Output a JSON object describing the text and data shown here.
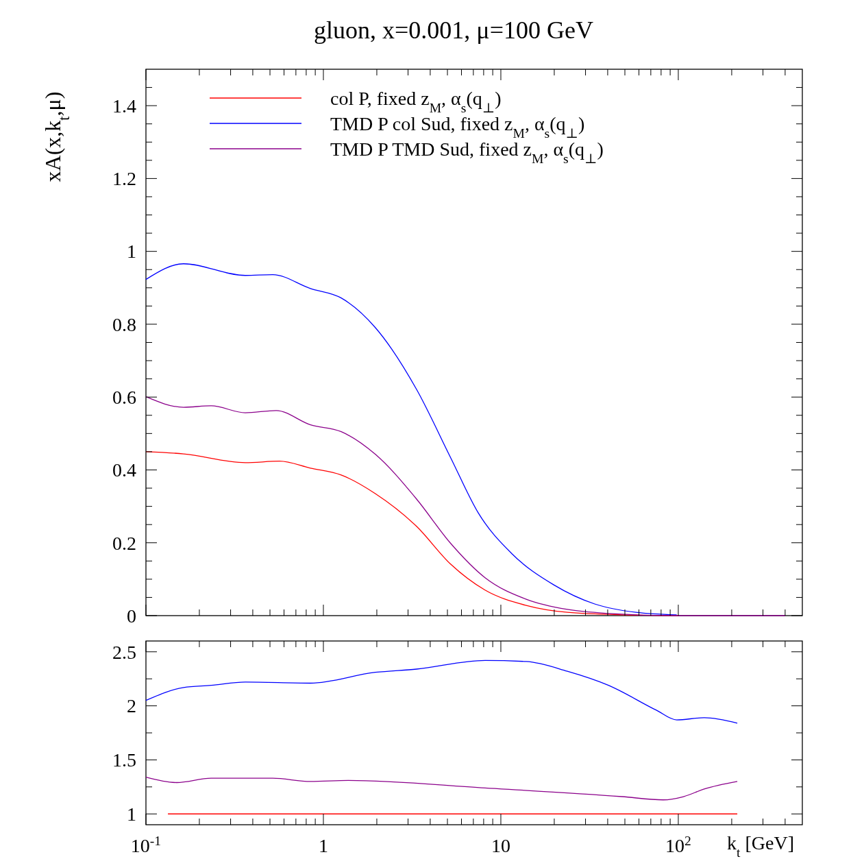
{
  "chart_data": [
    {
      "type": "line",
      "title": "gluon, x=0.001, μ=100 GeV",
      "ylabel": "xA(x,k$_{t}$,μ)",
      "log": "x",
      "xlim": [
        0.1,
        500
      ],
      "ylim": [
        0,
        1.5
      ],
      "tick_labels": "y",
      "legend": "top left",
      "grid": false,
      "xticks": [
        {
          "value": 0.1,
          "label": null
        },
        {
          "value": 0.2,
          "label": null
        },
        {
          "value": 0.3,
          "label": null
        },
        {
          "value": 0.4,
          "label": null
        },
        {
          "value": 0.5,
          "label": null
        },
        {
          "value": 0.6,
          "label": null
        },
        {
          "value": 0.7,
          "label": null
        },
        {
          "value": 0.8,
          "label": null
        },
        {
          "value": 0.9,
          "label": null
        },
        {
          "value": 1,
          "label": null
        },
        {
          "value": 2,
          "label": null
        },
        {
          "value": 3,
          "label": null
        },
        {
          "value": 4,
          "label": null
        },
        {
          "value": 5,
          "label": null
        },
        {
          "value": 6,
          "label": null
        },
        {
          "value": 7,
          "label": null
        },
        {
          "value": 8,
          "label": null
        },
        {
          "value": 9,
          "label": null
        },
        {
          "value": 10,
          "label": null
        },
        {
          "value": 20,
          "label": null
        },
        {
          "value": 30,
          "label": null
        },
        {
          "value": 40,
          "label": null
        },
        {
          "value": 50,
          "label": null
        },
        {
          "value": 60,
          "label": null
        },
        {
          "value": 70,
          "label": null
        },
        {
          "value": 80,
          "label": null
        },
        {
          "value": 90,
          "label": null
        },
        {
          "value": 100,
          "label": null
        },
        {
          "value": 200,
          "label": null
        },
        {
          "value": 300,
          "label": null
        },
        {
          "value": 400,
          "label": null
        }
      ],
      "yticks": [
        0,
        {
          "value": 0.05,
          "label": null
        },
        0.2,
        {
          "value": 0.1,
          "label": null
        },
        {
          "value": 0.15,
          "label": null
        },
        {
          "value": 0.25,
          "label": null
        },
        {
          "value": 0.3,
          "label": null
        },
        {
          "value": 0.35,
          "label": null
        },
        0.4,
        {
          "value": 0.45,
          "label": null
        },
        {
          "value": 0.5,
          "label": null
        },
        {
          "value": 0.55,
          "label": null
        },
        0.6,
        {
          "value": 0.65,
          "label": null
        },
        {
          "value": 0.7,
          "label": null
        },
        {
          "value": 0.75,
          "label": null
        },
        0.8,
        {
          "value": 0.85,
          "label": null
        },
        {
          "value": 0.9,
          "label": null
        },
        {
          "value": 0.95,
          "label": null
        },
        1,
        {
          "value": 1.05,
          "label": null
        },
        {
          "value": 1.1,
          "label": null
        },
        {
          "value": 1.15,
          "label": null
        },
        1.2,
        {
          "value": 1.25,
          "label": null
        },
        {
          "value": 1.3,
          "label": null
        },
        {
          "value": 1.35,
          "label": null
        },
        1.4,
        {
          "value": 1.45,
          "label": null
        }
      ],
      "series": [
        {
          "name": "col P, fixed z$_{M}$, α$_{s}$(q$_{⊥}$)",
          "color": "#ff0000",
          "x": [
            0.1,
            0.163,
            0.363,
            0.566,
            0.845,
            1.26,
            1.96,
            3.35,
            5.22,
            8.15,
            13.9,
            23.7,
            50,
            100
          ],
          "values": [
            0.45,
            0.444,
            0.42,
            0.424,
            0.405,
            0.386,
            0.335,
            0.245,
            0.141,
            0.07,
            0.028,
            0.009,
            0.002,
            0
          ]
        },
        {
          "name": "TMD P col Sud, fixed z$_{M}$, α$_{s}$(q$_{⊥}$)",
          "color": "#0000ff",
          "x": [
            0.1,
            0.163,
            0.363,
            0.518,
            0.845,
            1.26,
            1.96,
            3.35,
            5.22,
            7.46,
            11.6,
            19.8,
            33.8,
            57.7,
            98
          ],
          "values": [
            0.923,
            0.966,
            0.934,
            0.936,
            0.898,
            0.872,
            0.791,
            0.621,
            0.433,
            0.282,
            0.169,
            0.085,
            0.032,
            0.009,
            0.002
          ]
        },
        {
          "name": "TMD P TMD Sud, fixed z$_{M}$, α$_{s}$(q$_{⊥}$)",
          "color": "#8b008b",
          "x": [
            0.1,
            0.163,
            0.233,
            0.363,
            0.542,
            0.845,
            1.26,
            1.96,
            3.35,
            5.22,
            8.15,
            13.9,
            23.7,
            40.4,
            98,
            400
          ],
          "values": [
            0.601,
            0.572,
            0.576,
            0.557,
            0.563,
            0.524,
            0.505,
            0.443,
            0.32,
            0.198,
            0.104,
            0.045,
            0.017,
            0.006,
            0,
            0
          ]
        }
      ]
    },
    {
      "type": "line",
      "xlabel": "k$_{t}$ [GeV]",
      "log": "x",
      "xlim": [
        0.1,
        500
      ],
      "ylim": [
        0.9,
        2.6
      ],
      "legend": false,
      "grid": false,
      "xticks": [
        {
          "value": 0.1,
          "label": "10$^{-1}$"
        },
        {
          "value": 0.2,
          "label": null
        },
        {
          "value": 0.3,
          "label": null
        },
        {
          "value": 0.4,
          "label": null
        },
        {
          "value": 0.5,
          "label": null
        },
        {
          "value": 0.6,
          "label": null
        },
        {
          "value": 0.7,
          "label": null
        },
        {
          "value": 0.8,
          "label": null
        },
        {
          "value": 0.9,
          "label": null
        },
        1,
        {
          "value": 2,
          "label": null
        },
        {
          "value": 3,
          "label": null
        },
        {
          "value": 4,
          "label": null
        },
        {
          "value": 5,
          "label": null
        },
        {
          "value": 6,
          "label": null
        },
        {
          "value": 7,
          "label": null
        },
        {
          "value": 8,
          "label": null
        },
        {
          "value": 9,
          "label": null
        },
        10,
        {
          "value": 20,
          "label": null
        },
        {
          "value": 30,
          "label": null
        },
        {
          "value": 40,
          "label": null
        },
        {
          "value": 50,
          "label": null
        },
        {
          "value": 60,
          "label": null
        },
        {
          "value": 70,
          "label": null
        },
        {
          "value": 80,
          "label": null
        },
        {
          "value": 90,
          "label": null
        },
        {
          "value": 100,
          "label": "10$^{2}$"
        },
        {
          "value": 200,
          "label": null
        },
        {
          "value": 300,
          "label": null
        },
        {
          "value": 400,
          "label": null
        }
      ],
      "yticks": [
        1,
        {
          "value": 1.25,
          "label": null
        },
        1.5,
        {
          "value": 1.75,
          "label": null
        },
        2,
        {
          "value": 2.25,
          "label": null
        },
        2.5
      ],
      "series": [
        {
          "color": "#ff0000",
          "x": [
            0.133,
            215
          ],
          "values": [
            1,
            1
          ]
        },
        {
          "color": "#0000ff",
          "x": [
            0.1,
            0.163,
            0.233,
            0.363,
            0.845,
            1.96,
            3.35,
            8.15,
            13.9,
            23.7,
            40.4,
            75.2,
            98,
            140,
            215
          ],
          "values": [
            2.05,
            2.17,
            2.19,
            2.22,
            2.21,
            2.31,
            2.34,
            2.42,
            2.41,
            2.32,
            2.19,
            1.96,
            1.87,
            1.89,
            1.84
          ]
        },
        {
          "color": "#8b008b",
          "x": [
            0.1,
            0.149,
            0.233,
            0.518,
            0.845,
            1.38,
            8.15,
            48.2,
            82.2,
            107,
            140,
            215
          ],
          "values": [
            1.34,
            1.29,
            1.33,
            1.33,
            1.3,
            1.31,
            1.24,
            1.16,
            1.13,
            1.16,
            1.23,
            1.3
          ]
        }
      ]
    }
  ]
}
